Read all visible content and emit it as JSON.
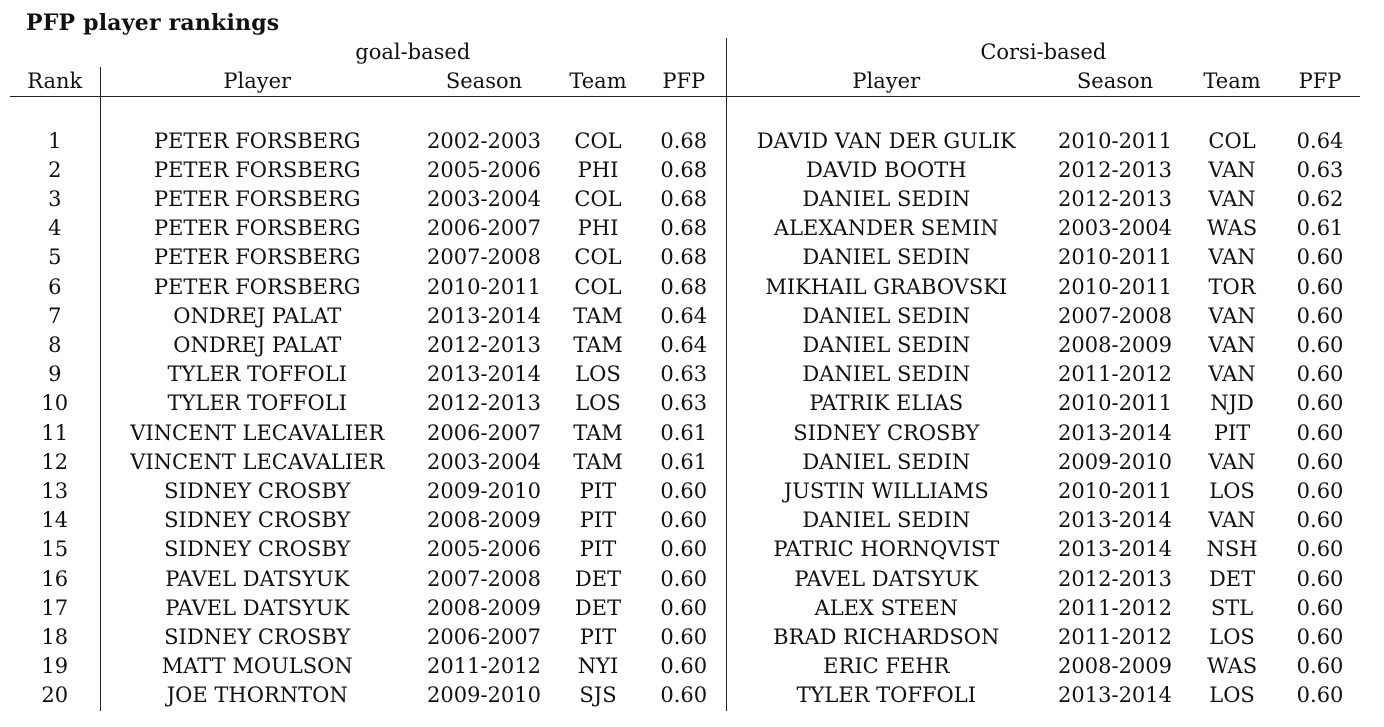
{
  "title": "PFP player rankings",
  "groups": {
    "goal": "goal-based",
    "corsi": "Corsi-based"
  },
  "columns": {
    "rank": "Rank",
    "player": "Player",
    "season": "Season",
    "team": "Team",
    "pfp": "PFP"
  },
  "rows": [
    {
      "rank": "1",
      "goal": {
        "player": "PETER FORSBERG",
        "season": "2002-2003",
        "team": "COL",
        "pfp": "0.68"
      },
      "corsi": {
        "player": "DAVID VAN DER GULIK",
        "season": "2010-2011",
        "team": "COL",
        "pfp": "0.64"
      }
    },
    {
      "rank": "2",
      "goal": {
        "player": "PETER FORSBERG",
        "season": "2005-2006",
        "team": "PHI",
        "pfp": "0.68"
      },
      "corsi": {
        "player": "DAVID BOOTH",
        "season": "2012-2013",
        "team": "VAN",
        "pfp": "0.63"
      }
    },
    {
      "rank": "3",
      "goal": {
        "player": "PETER FORSBERG",
        "season": "2003-2004",
        "team": "COL",
        "pfp": "0.68"
      },
      "corsi": {
        "player": "DANIEL SEDIN",
        "season": "2012-2013",
        "team": "VAN",
        "pfp": "0.62"
      }
    },
    {
      "rank": "4",
      "goal": {
        "player": "PETER FORSBERG",
        "season": "2006-2007",
        "team": "PHI",
        "pfp": "0.68"
      },
      "corsi": {
        "player": "ALEXANDER SEMIN",
        "season": "2003-2004",
        "team": "WAS",
        "pfp": "0.61"
      }
    },
    {
      "rank": "5",
      "goal": {
        "player": "PETER FORSBERG",
        "season": "2007-2008",
        "team": "COL",
        "pfp": "0.68"
      },
      "corsi": {
        "player": "DANIEL SEDIN",
        "season": "2010-2011",
        "team": "VAN",
        "pfp": "0.60"
      }
    },
    {
      "rank": "6",
      "goal": {
        "player": "PETER FORSBERG",
        "season": "2010-2011",
        "team": "COL",
        "pfp": "0.68"
      },
      "corsi": {
        "player": "MIKHAIL GRABOVSKI",
        "season": "2010-2011",
        "team": "TOR",
        "pfp": "0.60"
      }
    },
    {
      "rank": "7",
      "goal": {
        "player": "ONDREJ PALAT",
        "season": "2013-2014",
        "team": "TAM",
        "pfp": "0.64"
      },
      "corsi": {
        "player": "DANIEL SEDIN",
        "season": "2007-2008",
        "team": "VAN",
        "pfp": "0.60"
      }
    },
    {
      "rank": "8",
      "goal": {
        "player": "ONDREJ PALAT",
        "season": "2012-2013",
        "team": "TAM",
        "pfp": "0.64"
      },
      "corsi": {
        "player": "DANIEL SEDIN",
        "season": "2008-2009",
        "team": "VAN",
        "pfp": "0.60"
      }
    },
    {
      "rank": "9",
      "goal": {
        "player": "TYLER TOFFOLI",
        "season": "2013-2014",
        "team": "LOS",
        "pfp": "0.63"
      },
      "corsi": {
        "player": "DANIEL SEDIN",
        "season": "2011-2012",
        "team": "VAN",
        "pfp": "0.60"
      }
    },
    {
      "rank": "10",
      "goal": {
        "player": "TYLER TOFFOLI",
        "season": "2012-2013",
        "team": "LOS",
        "pfp": "0.63"
      },
      "corsi": {
        "player": "PATRIK ELIAS",
        "season": "2010-2011",
        "team": "NJD",
        "pfp": "0.60"
      }
    },
    {
      "rank": "11",
      "goal": {
        "player": "VINCENT LECAVALIER",
        "season": "2006-2007",
        "team": "TAM",
        "pfp": "0.61"
      },
      "corsi": {
        "player": "SIDNEY CROSBY",
        "season": "2013-2014",
        "team": "PIT",
        "pfp": "0.60"
      }
    },
    {
      "rank": "12",
      "goal": {
        "player": "VINCENT LECAVALIER",
        "season": "2003-2004",
        "team": "TAM",
        "pfp": "0.61"
      },
      "corsi": {
        "player": "DANIEL SEDIN",
        "season": "2009-2010",
        "team": "VAN",
        "pfp": "0.60"
      }
    },
    {
      "rank": "13",
      "goal": {
        "player": "SIDNEY CROSBY",
        "season": "2009-2010",
        "team": "PIT",
        "pfp": "0.60"
      },
      "corsi": {
        "player": "JUSTIN WILLIAMS",
        "season": "2010-2011",
        "team": "LOS",
        "pfp": "0.60"
      }
    },
    {
      "rank": "14",
      "goal": {
        "player": "SIDNEY CROSBY",
        "season": "2008-2009",
        "team": "PIT",
        "pfp": "0.60"
      },
      "corsi": {
        "player": "DANIEL SEDIN",
        "season": "2013-2014",
        "team": "VAN",
        "pfp": "0.60"
      }
    },
    {
      "rank": "15",
      "goal": {
        "player": "SIDNEY CROSBY",
        "season": "2005-2006",
        "team": "PIT",
        "pfp": "0.60"
      },
      "corsi": {
        "player": "PATRIC HORNQVIST",
        "season": "2013-2014",
        "team": "NSH",
        "pfp": "0.60"
      }
    },
    {
      "rank": "16",
      "goal": {
        "player": "PAVEL DATSYUK",
        "season": "2007-2008",
        "team": "DET",
        "pfp": "0.60"
      },
      "corsi": {
        "player": "PAVEL DATSYUK",
        "season": "2012-2013",
        "team": "DET",
        "pfp": "0.60"
      }
    },
    {
      "rank": "17",
      "goal": {
        "player": "PAVEL DATSYUK",
        "season": "2008-2009",
        "team": "DET",
        "pfp": "0.60"
      },
      "corsi": {
        "player": "ALEX STEEN",
        "season": "2011-2012",
        "team": "STL",
        "pfp": "0.60"
      }
    },
    {
      "rank": "18",
      "goal": {
        "player": "SIDNEY CROSBY",
        "season": "2006-2007",
        "team": "PIT",
        "pfp": "0.60"
      },
      "corsi": {
        "player": "BRAD RICHARDSON",
        "season": "2011-2012",
        "team": "LOS",
        "pfp": "0.60"
      }
    },
    {
      "rank": "19",
      "goal": {
        "player": "MATT MOULSON",
        "season": "2011-2012",
        "team": "NYI",
        "pfp": "0.60"
      },
      "corsi": {
        "player": "ERIC FEHR",
        "season": "2008-2009",
        "team": "WAS",
        "pfp": "0.60"
      }
    },
    {
      "rank": "20",
      "goal": {
        "player": "JOE THORNTON",
        "season": "2009-2010",
        "team": "SJS",
        "pfp": "0.60"
      },
      "corsi": {
        "player": "TYLER TOFFOLI",
        "season": "2013-2014",
        "team": "LOS",
        "pfp": "0.60"
      }
    }
  ]
}
